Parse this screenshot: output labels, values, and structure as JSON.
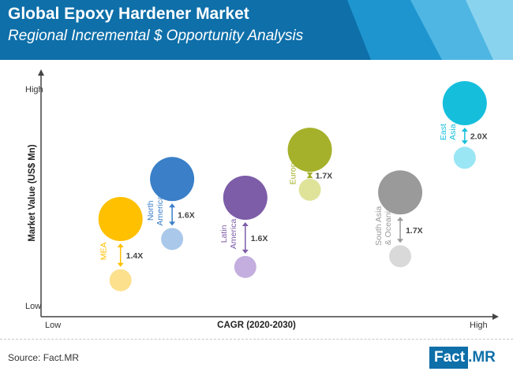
{
  "colors": {
    "header_dark": "#0e6fa9",
    "header_mid": "#1e95cf",
    "header_light": "#8ad3ef",
    "axis": "#444444"
  },
  "chart_data": {
    "type": "bubble",
    "title": "Global Epoxy Hardener Market",
    "subtitle": "Regional Incremental $ Opportunity Analysis",
    "xlabel": "CAGR (2020-2030)",
    "ylabel": "Market Value (US$ Mn)",
    "x_ticks": {
      "low": "Low",
      "high": "High"
    },
    "y_ticks": {
      "low": "Low",
      "high": "High"
    },
    "series": [
      {
        "name": "MEA",
        "multiplier": "1.4X",
        "color": "#ffc000",
        "light_color": "#fce08e",
        "current": {
          "x": 0.17,
          "y": 0.12,
          "size": 0.45
        },
        "future": {
          "x": 0.17,
          "y": 0.58,
          "size": 1.0
        }
      },
      {
        "name": "North America",
        "multiplier": "1.6X",
        "color": "#3a7fc8",
        "light_color": "#a9c8ea",
        "current": {
          "x": 0.29,
          "y": 0.43,
          "size": 0.45
        },
        "future": {
          "x": 0.29,
          "y": 0.88,
          "size": 1.0
        }
      },
      {
        "name": "Latin America",
        "multiplier": "1.6X",
        "color": "#7d5ca8",
        "light_color": "#c3aedf",
        "current": {
          "x": 0.46,
          "y": 0.22,
          "size": 0.45
        },
        "future": {
          "x": 0.46,
          "y": 0.74,
          "size": 1.0
        }
      },
      {
        "name": "Europe",
        "multiplier": "1.7X",
        "color": "#a5b12a",
        "light_color": "#dfe39a",
        "current": {
          "x": 0.61,
          "y": 0.8,
          "size": 0.45
        },
        "future": {
          "x": 0.61,
          "y": 1.1,
          "size": 1.0
        }
      },
      {
        "name": "South Asia & Oceania",
        "multiplier": "1.7X",
        "color": "#9a9a9a",
        "light_color": "#d9d9d9",
        "current": {
          "x": 0.82,
          "y": 0.3,
          "size": 0.45
        },
        "future": {
          "x": 0.82,
          "y": 0.78,
          "size": 1.0
        }
      },
      {
        "name": "East Asia",
        "multiplier": "2.0X",
        "color": "#15bfdc",
        "light_color": "#9ae6f4",
        "current": {
          "x": 0.97,
          "y": 1.04,
          "size": 0.45
        },
        "future": {
          "x": 0.97,
          "y": 1.45,
          "size": 1.0
        }
      }
    ]
  },
  "footer": {
    "source": "Source: Fact.MR",
    "logo_main": "Fact",
    "logo_dot": ".",
    "logo_mr": "MR"
  }
}
